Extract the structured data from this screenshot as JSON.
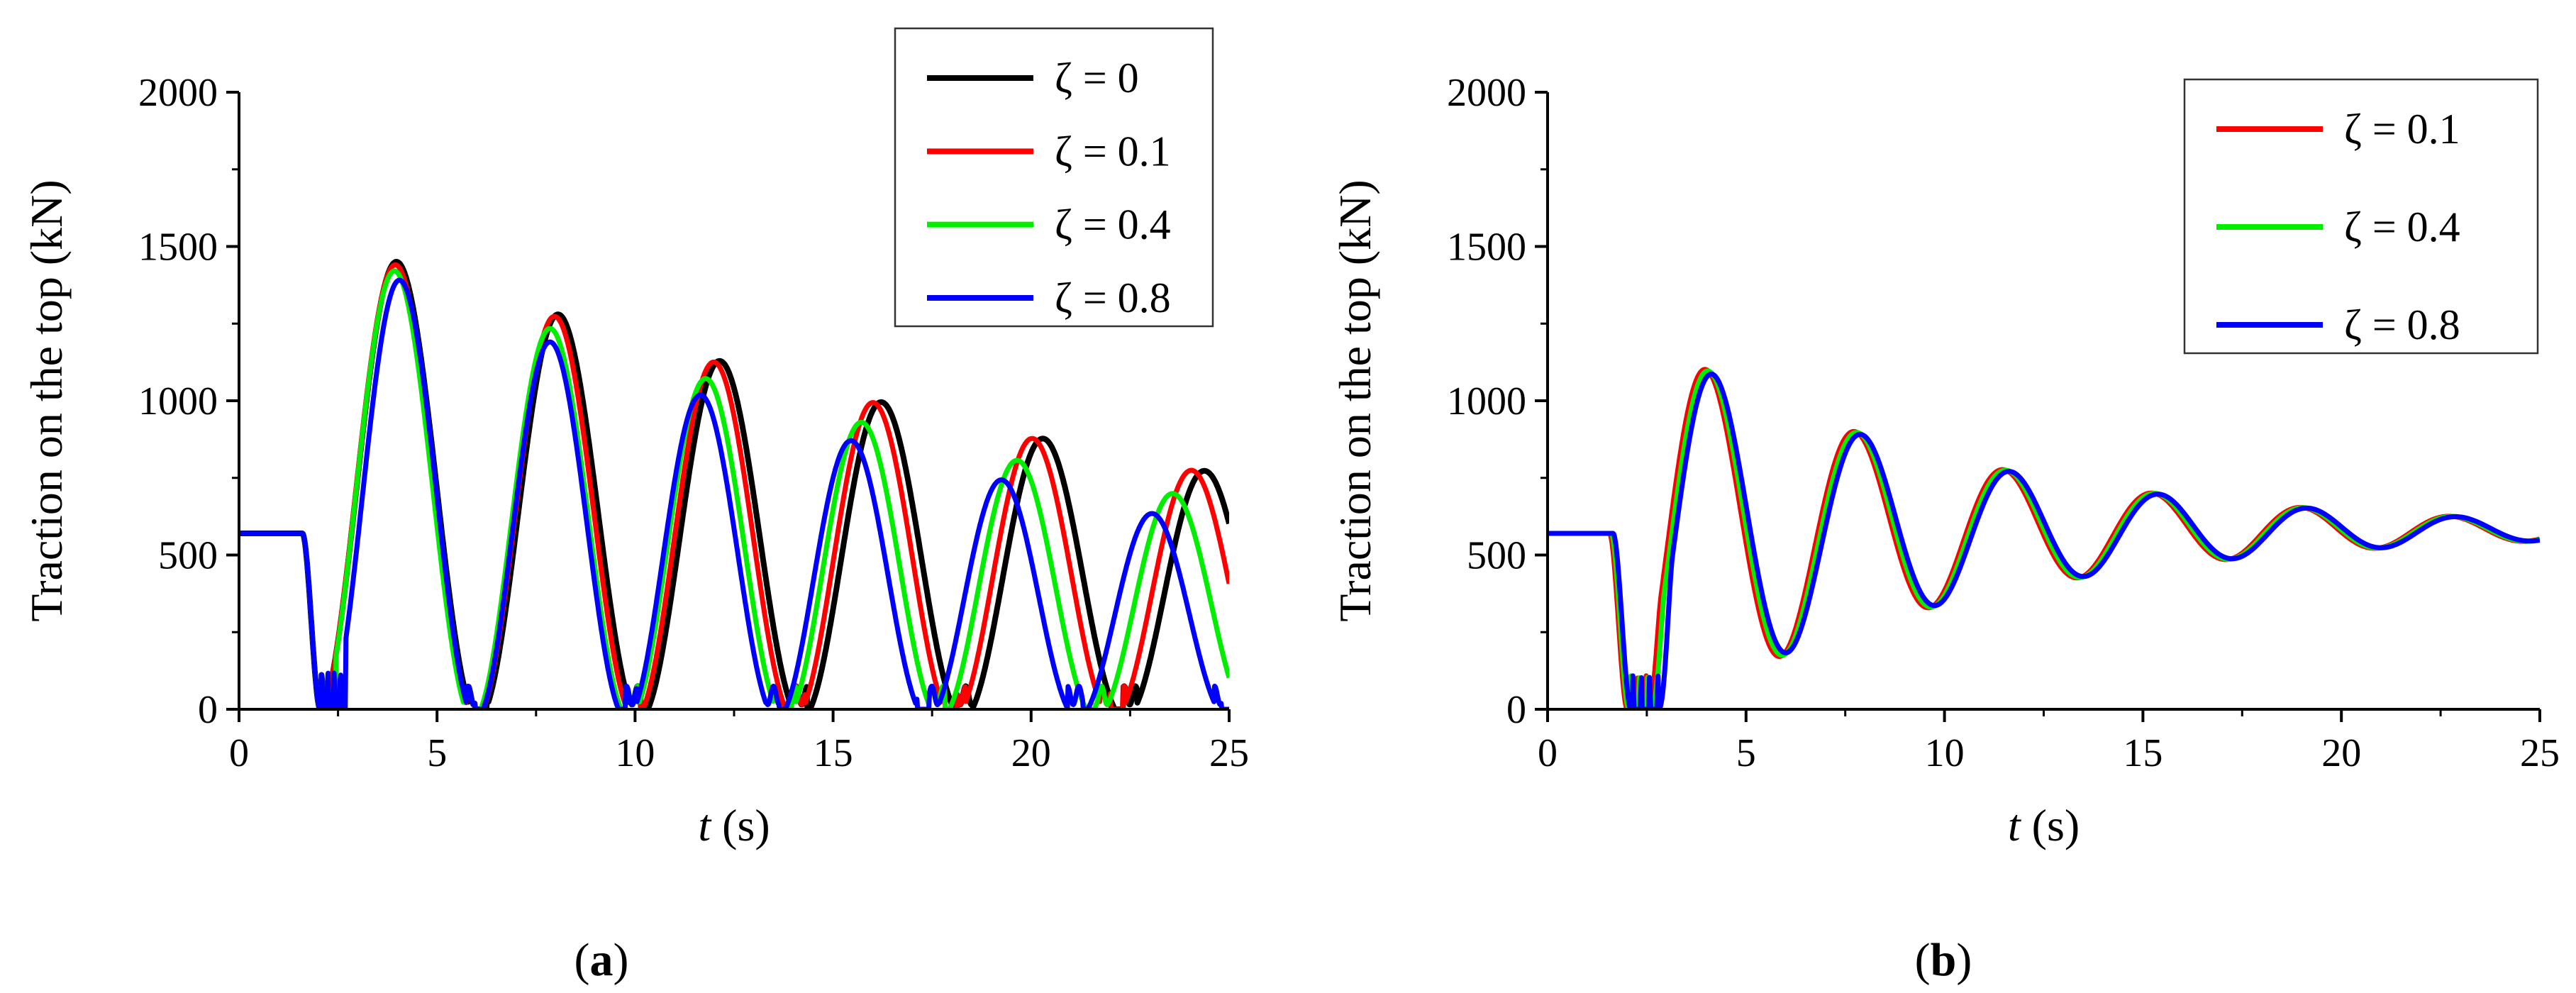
{
  "chart_data": [
    {
      "type": "line",
      "panel_label": {
        "open": "(",
        "letter": "a",
        "close": ")"
      },
      "ylabel": "Traction on the top (kN)",
      "xlabel": {
        "var": "t",
        "unit": " (s)"
      },
      "xlim": [
        0,
        25
      ],
      "ylim": [
        0,
        2000
      ],
      "xticks": [
        0,
        5,
        10,
        15,
        20,
        25
      ],
      "yticks": [
        0,
        500,
        1000,
        1500,
        2000
      ],
      "legend_position": "top-right",
      "series": [
        {
          "name": "ζ = 0",
          "color": "#000000",
          "model": {
            "base": 570,
            "drop_start": 1.6,
            "drop_end": 2.05,
            "period": 4.08,
            "decay": 0.03,
            "first_peak": 4.0,
            "peak1": 1450,
            "offset": -30,
            "zero_until": 2.25,
            "slack": true
          }
        },
        {
          "name": "ζ = 0.1",
          "color": "#ff0000",
          "model": {
            "base": 570,
            "drop_start": 1.6,
            "drop_end": 2.05,
            "period": 4.02,
            "decay": 0.03,
            "first_peak": 3.97,
            "peak1": 1440,
            "offset": -30,
            "zero_until": 2.3,
            "slack": true
          }
        },
        {
          "name": "ζ = 0.4",
          "color": "#00ee00",
          "model": {
            "base": 570,
            "drop_start": 1.6,
            "drop_end": 2.05,
            "period": 3.93,
            "decay": 0.035,
            "first_peak": 3.95,
            "peak1": 1420,
            "offset": -30,
            "zero_until": 2.45,
            "slack": true
          }
        },
        {
          "name": "ζ = 0.8",
          "color": "#0000ff",
          "model": {
            "base": 570,
            "drop_start": 1.6,
            "drop_end": 2.05,
            "period": 3.8,
            "decay": 0.04,
            "first_peak": 4.08,
            "peak1": 1390,
            "offset": -30,
            "zero_until": 2.7,
            "slack": true
          }
        }
      ]
    },
    {
      "type": "line",
      "panel_label": {
        "open": "(",
        "letter": "b",
        "close": ")"
      },
      "ylabel": "Traction on the top (kN)",
      "xlabel": {
        "var": "t",
        "unit": " (s)"
      },
      "xlim": [
        0,
        25
      ],
      "ylim": [
        0,
        2000
      ],
      "xticks": [
        0,
        5,
        10,
        15,
        20,
        25
      ],
      "yticks": [
        0,
        500,
        1000,
        1500,
        2000
      ],
      "legend_position": "top-right",
      "series": [
        {
          "name": "ζ = 0.1",
          "color": "#ff0000",
          "model": {
            "base": 570,
            "drop_start": 1.6,
            "drop_end": 2.05,
            "period": 3.75,
            "first_peak": 4.05,
            "peak1": 1100,
            "trough1": 190,
            "mean": 580,
            "amp_decay": 0.13,
            "zero_until": 2.7,
            "slack": false,
            "shift": -0.04
          }
        },
        {
          "name": "ζ = 0.4",
          "color": "#00ee00",
          "model": {
            "base": 570,
            "drop_start": 1.6,
            "drop_end": 2.05,
            "period": 3.75,
            "first_peak": 4.08,
            "peak1": 1095,
            "trough1": 195,
            "mean": 580,
            "amp_decay": 0.13,
            "zero_until": 2.75,
            "slack": false,
            "shift": 0
          }
        },
        {
          "name": "ζ = 0.8",
          "color": "#0000ff",
          "model": {
            "base": 570,
            "drop_start": 1.6,
            "drop_end": 2.05,
            "period": 3.75,
            "first_peak": 4.12,
            "peak1": 1085,
            "trough1": 200,
            "mean": 580,
            "amp_decay": 0.13,
            "zero_until": 2.9,
            "slack": false,
            "shift": 0.05
          }
        }
      ]
    }
  ]
}
